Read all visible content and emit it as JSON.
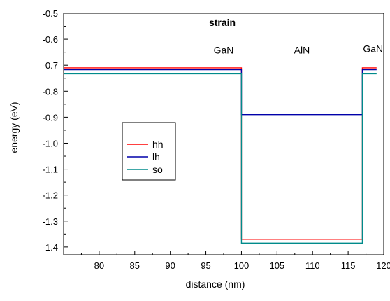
{
  "chart_data": {
    "type": "line",
    "title": "strain",
    "xlabel": "distance (nm)",
    "ylabel": "energy (eV)",
    "xlim": [
      75,
      120
    ],
    "ylim": [
      -1.43,
      -0.5
    ],
    "x_ticks": [
      80,
      85,
      90,
      95,
      100,
      105,
      110,
      115,
      120
    ],
    "y_ticks": [
      -0.5,
      -0.6,
      -0.7,
      -0.8,
      -0.9,
      -1.0,
      -1.1,
      -1.2,
      -1.3,
      -1.4
    ],
    "x_tick_labels": [
      "80",
      "85",
      "90",
      "95",
      "100",
      "105",
      "110",
      "115",
      "120"
    ],
    "y_tick_labels": [
      "-0.5",
      "-0.6",
      "-0.7",
      "-0.8",
      "-0.9",
      "-1.0",
      "-1.1",
      "-1.2",
      "-1.3",
      "-1.4"
    ],
    "grid": false,
    "legend_position": "left-center",
    "annotations": [
      {
        "text": "GaN",
        "x": 97.5,
        "y": -0.655
      },
      {
        "text": "AlN",
        "x": 108.5,
        "y": -0.655
      },
      {
        "text": "GaN",
        "x": 118.5,
        "y": -0.65
      }
    ],
    "series": [
      {
        "name": "hh",
        "color": "#ff0000",
        "x": [
          75,
          100,
          100,
          117,
          117,
          119
        ],
        "y": [
          -0.71,
          -0.71,
          -1.37,
          -1.37,
          -0.71,
          -0.71
        ]
      },
      {
        "name": "lh",
        "color": "#0000aa",
        "x": [
          75,
          100,
          100,
          117,
          117,
          119
        ],
        "y": [
          -0.717,
          -0.717,
          -0.89,
          -0.89,
          -0.717,
          -0.717
        ]
      },
      {
        "name": "so",
        "color": "#008b8b",
        "x": [
          75,
          100,
          100,
          117,
          117,
          119
        ],
        "y": [
          -0.733,
          -0.733,
          -1.385,
          -1.385,
          -0.733,
          -0.733
        ]
      }
    ]
  }
}
